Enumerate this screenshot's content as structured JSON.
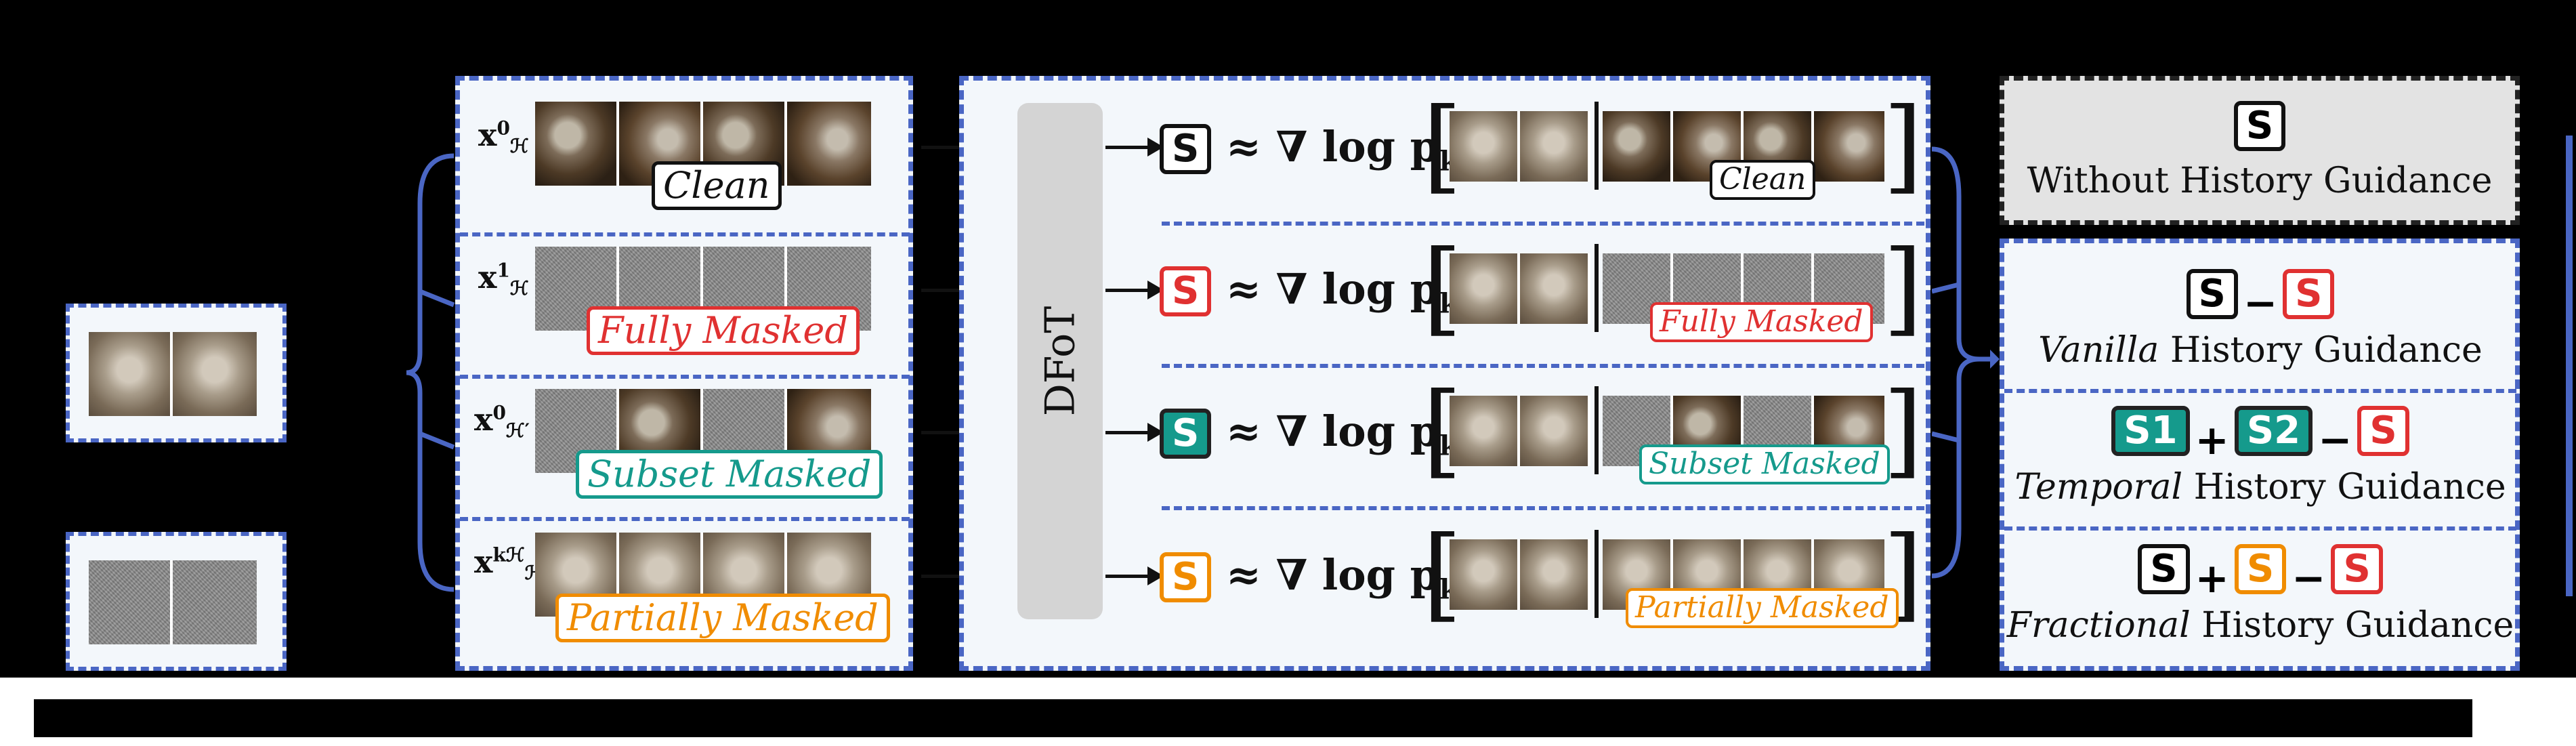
{
  "rows": [
    {
      "label_base": "x",
      "label_sup": "0",
      "label_sub": "ℋ",
      "tag": "Clean",
      "tag_color": "#111111",
      "fill": "clean"
    },
    {
      "label_base": "x",
      "label_sup": "1",
      "label_sub": "ℋ",
      "tag": "Fully Masked",
      "tag_color": "#e03131",
      "fill": "full"
    },
    {
      "label_base": "x",
      "label_sup": "0",
      "label_sub": "ℋ′",
      "tag": "Subset Masked",
      "tag_color": "#159a8c",
      "fill": "subset"
    },
    {
      "label_base": "x",
      "label_sup": "kℋ",
      "label_sub": "ℋ",
      "tag": "Partially Masked",
      "tag_color": "#f08c00",
      "fill": "partial"
    }
  ],
  "model_label": "DFoT",
  "score_symbol": "S",
  "score_colors": {
    "clean": "#ffffff",
    "full": "#e03131",
    "subset": "#159a8c",
    "partial": "#f08c00"
  },
  "equation": "≈ ∇ log p",
  "equation_sub": "k",
  "guidance": {
    "without": {
      "label": "Without History Guidance"
    },
    "vanilla": {
      "label_italic": "Vanilla",
      "label_rest": " History Guidance",
      "op1": "−"
    },
    "temporal": {
      "label_italic": "Temporal",
      "label_rest": " History Guidance",
      "s1": "S1",
      "s2": "S2",
      "op1": "+",
      "op2": "−"
    },
    "fractional": {
      "label_italic": "Fractional",
      "label_rest": " History Guidance",
      "op1": "+",
      "op2": "−"
    }
  },
  "colors": {
    "accent": "#4a66c4",
    "panel_bg": "#f3f7fb",
    "gray_box": "#e3e3e3",
    "model_box": "#d4d4d4"
  }
}
